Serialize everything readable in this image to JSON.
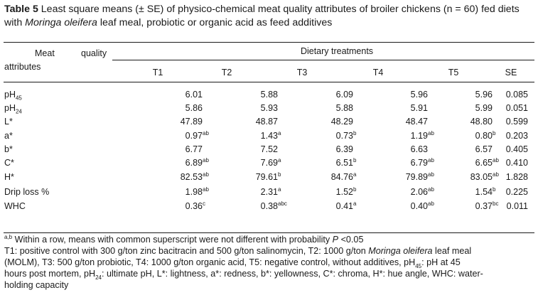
{
  "caption": {
    "table_label": "Table 5",
    "text_before_italic": " Least square means (± SE) of physico-chemical meat quality attributes of broiler chickens (n = 60) fed diets with ",
    "italic": "Moringa oleifera",
    "text_after_italic": " leaf meal, probiotic or organic acid as feed additives"
  },
  "header": {
    "meat_word": "Meat",
    "quality_word": "quality",
    "attributes_word": "attributes",
    "group_label": "Dietary treatments",
    "columns": [
      "T1",
      "T2",
      "T3",
      "T4",
      "T5",
      "SE"
    ]
  },
  "rows": [
    {
      "label_main": "pH",
      "label_sub": "45",
      "cells": [
        {
          "v": "6.01",
          "s": ""
        },
        {
          "v": "5.88",
          "s": ""
        },
        {
          "v": "6.09",
          "s": ""
        },
        {
          "v": "5.96",
          "s": ""
        },
        {
          "v": "5.96",
          "s": ""
        }
      ],
      "se": "0.085"
    },
    {
      "label_main": "pH",
      "label_sub": "24",
      "cells": [
        {
          "v": "5.86",
          "s": ""
        },
        {
          "v": "5.93",
          "s": ""
        },
        {
          "v": "5.88",
          "s": ""
        },
        {
          "v": "5.91",
          "s": ""
        },
        {
          "v": "5.99",
          "s": ""
        }
      ],
      "se": "0.051"
    },
    {
      "label_main": "L*",
      "label_sub": "",
      "cells": [
        {
          "v": "47.89",
          "s": ""
        },
        {
          "v": "48.87",
          "s": ""
        },
        {
          "v": "48.29",
          "s": ""
        },
        {
          "v": "48.47",
          "s": ""
        },
        {
          "v": "48.80",
          "s": ""
        }
      ],
      "se": "0.599"
    },
    {
      "label_main": "a*",
      "label_sub": "",
      "cells": [
        {
          "v": "0.97",
          "s": "ab"
        },
        {
          "v": "1.43",
          "s": "a"
        },
        {
          "v": "0.73",
          "s": "b"
        },
        {
          "v": "1.19",
          "s": "ab"
        },
        {
          "v": "0.80",
          "s": "b"
        }
      ],
      "se": "0.203"
    },
    {
      "label_main": "b*",
      "label_sub": "",
      "cells": [
        {
          "v": "6.77",
          "s": ""
        },
        {
          "v": "7.52",
          "s": ""
        },
        {
          "v": "6.39",
          "s": ""
        },
        {
          "v": "6.63",
          "s": ""
        },
        {
          "v": "6.57",
          "s": ""
        }
      ],
      "se": "0.405"
    },
    {
      "label_main": "C*",
      "label_sub": "",
      "cells": [
        {
          "v": "6.89",
          "s": "ab"
        },
        {
          "v": "7.69",
          "s": "a"
        },
        {
          "v": "6.51",
          "s": "b"
        },
        {
          "v": "6.79",
          "s": "ab"
        },
        {
          "v": "6.65",
          "s": "ab"
        }
      ],
      "se": "0.410"
    },
    {
      "label_main": "H*",
      "label_sub": "",
      "cells": [
        {
          "v": "82.53",
          "s": "ab"
        },
        {
          "v": "79.61",
          "s": "b"
        },
        {
          "v": "84.76",
          "s": "a"
        },
        {
          "v": "79.89",
          "s": "ab"
        },
        {
          "v": "83.05",
          "s": "ab"
        }
      ],
      "se": "1.828"
    },
    {
      "label_main": "Drip loss %",
      "label_sub": "",
      "cells": [
        {
          "v": "1.98",
          "s": "ab"
        },
        {
          "v": "2.31",
          "s": "a"
        },
        {
          "v": "1.52",
          "s": "b"
        },
        {
          "v": "2.06",
          "s": "ab"
        },
        {
          "v": "1.54",
          "s": "b"
        }
      ],
      "se": "0.225"
    },
    {
      "label_main": "WHC",
      "label_sub": "",
      "cells": [
        {
          "v": "0.36",
          "s": "c"
        },
        {
          "v": "0.38",
          "s": "abc"
        },
        {
          "v": "0.41",
          "s": "a"
        },
        {
          "v": "0.40",
          "s": "ab"
        },
        {
          "v": "0.37",
          "s": "bc"
        }
      ],
      "se": "0.011"
    }
  ],
  "footnote": {
    "sup": "a,b",
    "text_before_italic": " Within a row, means with common superscript were not different with probability ",
    "italic": "P",
    "text_after_italic": " <0.05"
  },
  "legend": {
    "part1": "T1: positive control with 300 g/ton zinc bacitracin and 500 g/ton salinomycin, T2: 1000 g/ton ",
    "italic": "Moringa oleifera",
    "part2": " leaf meal",
    "part3": "(MOLM), T3: 500 g/ton probiotic, T4: 1000 g/ton organic acid, T5: negative control, without additives, pH",
    "sub45": "45",
    "part4": ": pH at 45",
    "part5": "hours post mortem, pH",
    "sub24": "24",
    "part6": ": ultimate pH, L*: lightness, a*: redness, b*: yellowness, C*: chroma, H*: hue angle, WHC: water-",
    "part7": "holding capacity"
  }
}
